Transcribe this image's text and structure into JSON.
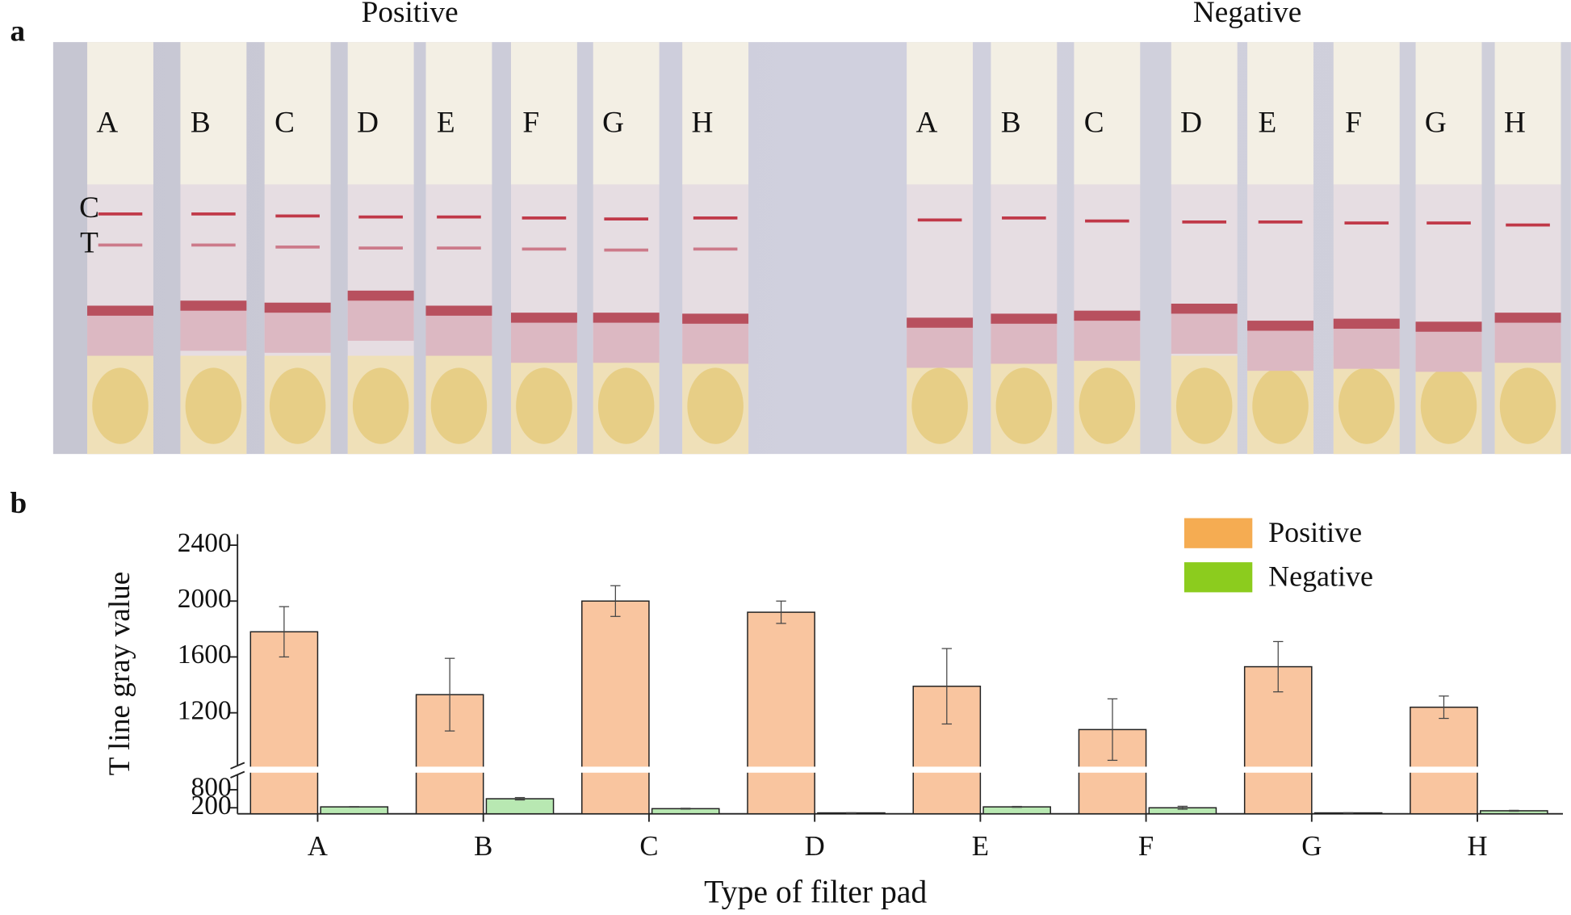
{
  "panel_a": {
    "label": "a",
    "line_labels": [
      "C",
      "T"
    ],
    "groups": [
      {
        "title": "Positive",
        "strips": [
          "A",
          "B",
          "C",
          "D",
          "E",
          "F",
          "G",
          "H"
        ]
      },
      {
        "title": "Negative",
        "strips": [
          "A",
          "B",
          "C",
          "D",
          "E",
          "F",
          "G",
          "H"
        ]
      }
    ]
  },
  "panel_b_label": "b",
  "chart_data": {
    "type": "bar",
    "ylabel": "T line gray value",
    "xlabel": "Type of filter pad",
    "categories": [
      "A",
      "B",
      "C",
      "D",
      "E",
      "F",
      "G",
      "H"
    ],
    "series": [
      {
        "name": "Positive",
        "color": "#f9c59f",
        "legend_color": "#f5ac52",
        "values": [
          1780,
          1330,
          2000,
          1920,
          1390,
          1080,
          1530,
          1240
        ],
        "errors": [
          180,
          260,
          110,
          80,
          270,
          220,
          180,
          80
        ]
      },
      {
        "name": "Negative",
        "color": "#b8e8b2",
        "legend_color": "#8ccc1e",
        "values": [
          230,
          500,
          170,
          30,
          230,
          200,
          30,
          100
        ],
        "errors": [
          10,
          40,
          15,
          5,
          15,
          50,
          5,
          15
        ]
      }
    ],
    "ylim_lower": [
      0,
      800
    ],
    "ylim_upper": [
      800,
      2400
    ],
    "yticks": [
      200,
      800,
      1200,
      1600,
      2000,
      2400
    ],
    "legend": "upper right"
  }
}
